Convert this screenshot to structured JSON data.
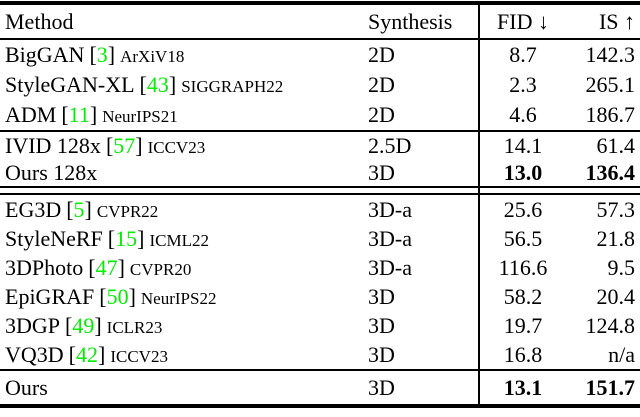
{
  "colors": {
    "citation_green": "#00EE00",
    "text": "#000000",
    "background": "#FFFFFF",
    "rule": "#000000"
  },
  "table": {
    "headers": {
      "method": "Method",
      "synthesis": "Synthesis",
      "fid": "FID ↓",
      "is_score": "IS ↑"
    },
    "groups": [
      {
        "rows": [
          {
            "method": "BigGAN",
            "ref_open": "[",
            "ref_num": "3",
            "ref_close": "]",
            "venue": "ArXiV18",
            "synthesis": "2D",
            "fid": "8.7",
            "is_score": "142.3",
            "bold_metrics": false
          },
          {
            "method": "StyleGAN-XL",
            "ref_open": "[",
            "ref_num": "43",
            "ref_close": "]",
            "venue": "SIGGRAPH22",
            "synthesis": "2D",
            "fid": "2.3",
            "is_score": "265.1",
            "bold_metrics": false
          },
          {
            "method": "ADM",
            "ref_open": "[",
            "ref_num": "11",
            "ref_close": "]",
            "venue": "NeurIPS21",
            "synthesis": "2D",
            "fid": "4.6",
            "is_score": "186.7",
            "bold_metrics": false
          }
        ]
      },
      {
        "separator_above": "single",
        "rows": [
          {
            "method": "IVID 128x",
            "ref_open": "[",
            "ref_num": "57",
            "ref_close": "]",
            "venue": "ICCV23",
            "synthesis": "2.5D",
            "fid": "14.1",
            "is_score": "61.4",
            "bold_metrics": false
          },
          {
            "method": "Ours 128x",
            "synthesis": "3D",
            "fid": "13.0",
            "is_score": "136.4",
            "bold_metrics": true
          }
        ]
      },
      {
        "separator_above": "double",
        "rows": [
          {
            "method": "EG3D",
            "ref_open": "[",
            "ref_num": "5",
            "ref_close": "]",
            "venue": "CVPR22",
            "synthesis": "3D-a",
            "fid": "25.6",
            "is_score": "57.3",
            "bold_metrics": false
          },
          {
            "method": "StyleNeRF",
            "ref_open": "[",
            "ref_num": "15",
            "ref_close": "]",
            "venue": "ICML22",
            "synthesis": "3D-a",
            "fid": "56.5",
            "is_score": "21.8",
            "bold_metrics": false
          },
          {
            "method": "3DPhoto",
            "ref_open": "[",
            "ref_num": "47",
            "ref_close": "]",
            "venue": "CVPR20",
            "synthesis": "3D-a",
            "fid": "116.6",
            "is_score": "9.5",
            "bold_metrics": false
          },
          {
            "method": "EpiGRAF",
            "ref_open": "[",
            "ref_num": "50",
            "ref_close": "]",
            "venue": "NeurIPS22",
            "synthesis": "3D",
            "fid": "58.2",
            "is_score": "20.4",
            "bold_metrics": false
          },
          {
            "method": "3DGP",
            "ref_open": "[",
            "ref_num": "49",
            "ref_close": "]",
            "venue": "ICLR23",
            "synthesis": "3D",
            "fid": "19.7",
            "is_score": "124.8",
            "bold_metrics": false
          },
          {
            "method": "VQ3D",
            "ref_open": "[",
            "ref_num": "42",
            "ref_close": "]",
            "venue": "ICCV23",
            "synthesis": "3D",
            "fid": "16.8",
            "is_score": "n/a",
            "bold_metrics": false
          }
        ]
      },
      {
        "separator_above": "single",
        "rows": [
          {
            "method": "Ours",
            "synthesis": "3D",
            "fid": "13.1",
            "is_score": "151.7",
            "bold_metrics": true
          }
        ]
      }
    ]
  }
}
